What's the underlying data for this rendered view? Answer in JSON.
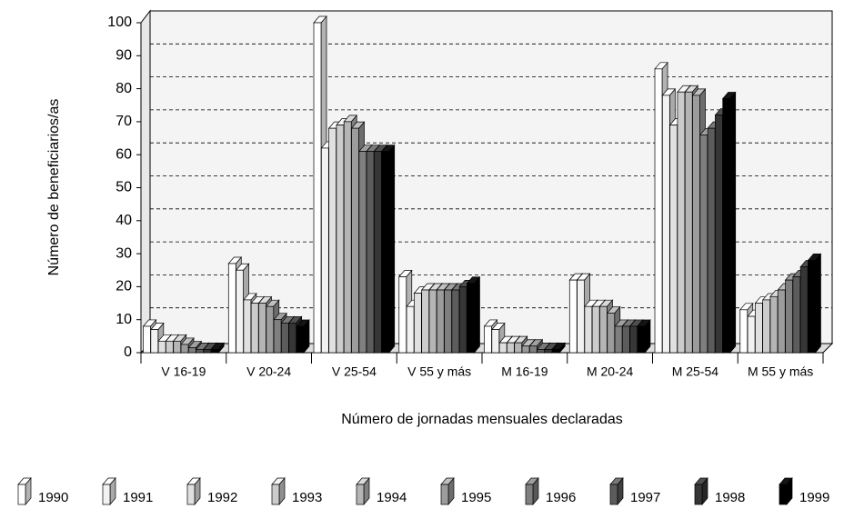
{
  "chart_data": {
    "type": "bar3d",
    "y_label": "Número de beneficiarios/as",
    "x_label": "Número de jornadas mensuales declaradas",
    "categories": [
      "V 16-19",
      "V 20-24",
      "V 25-54",
      "V 55 y más",
      "M 16-19",
      "M 20-24",
      "M 25-54",
      "M 55 y más"
    ],
    "ylim": [
      0,
      100
    ],
    "yticks": [
      0,
      10,
      20,
      30,
      40,
      50,
      60,
      70,
      80,
      90,
      100
    ],
    "grid": true,
    "series": [
      {
        "name": "1990",
        "color": "#ffffff",
        "values": [
          8,
          27,
          100,
          23,
          8,
          22,
          86,
          13
        ]
      },
      {
        "name": "1991",
        "color": "#f2f2f2",
        "values": [
          7,
          25,
          62,
          14,
          7,
          22,
          78,
          11
        ]
      },
      {
        "name": "1992",
        "color": "#e0e0e0",
        "values": [
          3.5,
          16,
          68,
          18,
          3,
          14,
          69,
          15
        ]
      },
      {
        "name": "1993",
        "color": "#cccccc",
        "values": [
          3.5,
          15,
          69,
          19,
          3,
          14,
          79,
          16
        ]
      },
      {
        "name": "1994",
        "color": "#b5b5b5",
        "values": [
          3.5,
          15,
          70,
          19,
          3,
          14,
          79,
          17
        ]
      },
      {
        "name": "1995",
        "color": "#9c9c9c",
        "values": [
          2.5,
          14,
          68,
          19,
          2,
          12,
          78,
          19
        ]
      },
      {
        "name": "1996",
        "color": "#7f7f7f",
        "values": [
          1.5,
          10,
          61,
          19,
          2,
          8,
          66,
          22
        ]
      },
      {
        "name": "1997",
        "color": "#5c5c5c",
        "values": [
          1,
          9,
          61,
          19,
          1,
          8,
          68,
          23
        ]
      },
      {
        "name": "1998",
        "color": "#363636",
        "values": [
          1,
          9,
          61,
          20,
          1,
          8,
          72,
          26
        ]
      },
      {
        "name": "1999",
        "color": "#000000",
        "values": [
          1,
          8,
          61,
          21,
          1,
          8,
          77,
          28
        ]
      }
    ]
  }
}
